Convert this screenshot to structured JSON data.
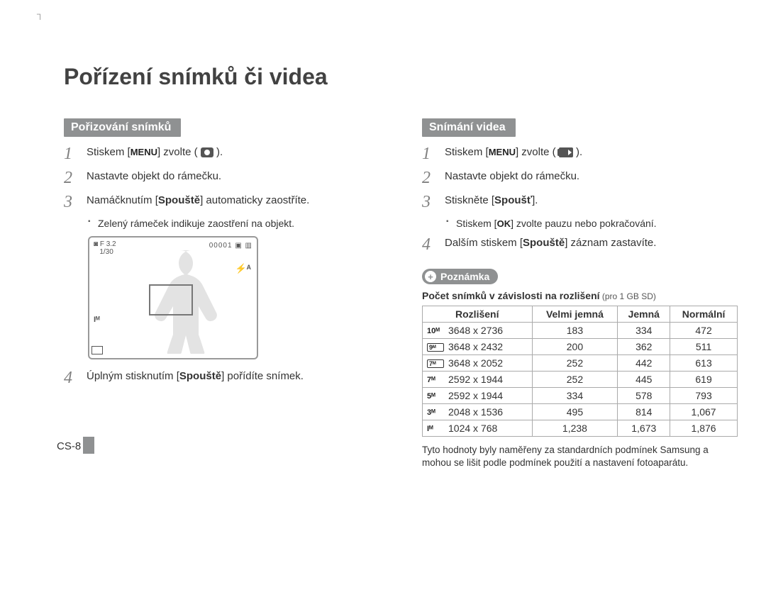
{
  "crop_marks": {
    "tl": "┐"
  },
  "title": "Pořízení snímků či videa",
  "menu_label": "MENU",
  "ok_label": "OK",
  "left": {
    "heading": "Pořizování snímků",
    "steps": [
      {
        "n": "1",
        "pre": "Stiskem [",
        "mid": "] zvolte (",
        "post": " ).",
        "icon": "camera"
      },
      {
        "n": "2",
        "text": "Nastavte objekt do rámečku."
      },
      {
        "n": "3",
        "pre": "Namáčknutím [",
        "bold": "Spouště",
        "post": "] automaticky zaostříte."
      },
      {
        "n": "4",
        "pre": "Úplným stisknutím [",
        "bold": "Spouště",
        "post": "] pořídíte snímek."
      }
    ],
    "bullet3": "Zelený rámeček indikuje zaostření na objekt.",
    "lcd": {
      "tl1": "F 3.2",
      "tl2": "1/30",
      "tr": "00001  ▣ ▥",
      "flash": "⚡ᴬ",
      "bl1": "Iᴹ",
      "cam_glyph": "◙"
    }
  },
  "right": {
    "heading": "Snímání videa",
    "steps": [
      {
        "n": "1",
        "pre": "Stiskem [",
        "mid": "] zvolte (",
        "post": " ).",
        "icon": "movie"
      },
      {
        "n": "2",
        "text": "Nastavte objekt do rámečku."
      },
      {
        "n": "3",
        "pre": "Stiskněte [",
        "bold": "Spoušť",
        "post": "]."
      },
      {
        "n": "4",
        "pre": "Dalším stiskem [",
        "bold": "Spouště",
        "post": "] záznam zastavíte."
      }
    ],
    "bullet3a": "Stiskem [",
    "bullet3b": "] zvolte pauzu nebo pokračování.",
    "note_label": "Poznámka",
    "table_title_bold": "Počet snímků v závislosti na rozlišení",
    "table_title_thin": " (pro 1 GB SD)",
    "table": {
      "headers": [
        "Rozlišení",
        "Velmi jemná",
        "Jemná",
        "Normální"
      ],
      "rows": [
        {
          "ico": "10ᴹ",
          "boxed": false,
          "res": "3648 x 2736",
          "v": [
            "183",
            "334",
            "472"
          ]
        },
        {
          "ico": "9ᴹ",
          "boxed": true,
          "res": "3648 x 2432",
          "v": [
            "200",
            "362",
            "511"
          ]
        },
        {
          "ico": "7ᴹ",
          "boxed": true,
          "res": "3648 x 2052",
          "v": [
            "252",
            "442",
            "613"
          ]
        },
        {
          "ico": "7ᴹ",
          "boxed": false,
          "res": "2592 x 1944",
          "v": [
            "252",
            "445",
            "619"
          ]
        },
        {
          "ico": "5ᴹ",
          "boxed": false,
          "res": "2592 x 1944",
          "v": [
            "334",
            "578",
            "793"
          ]
        },
        {
          "ico": "3ᴹ",
          "boxed": false,
          "res": "2048 x 1536",
          "v": [
            "495",
            "814",
            "1,067"
          ]
        },
        {
          "ico": "Iᴹ",
          "boxed": false,
          "res": "1024 x 768",
          "v": [
            "1,238",
            "1,673",
            "1,876"
          ]
        }
      ]
    },
    "footnote": "Tyto hodnoty byly naměřeny za standardních podmínek Samsung a mohou se lišit podle podmínek použití a nastavení fotoaparátu."
  },
  "page_number": "CS-8",
  "colors": {
    "bar_bg": "#8f9192",
    "text": "#444444",
    "border": "#aaaaaa"
  }
}
